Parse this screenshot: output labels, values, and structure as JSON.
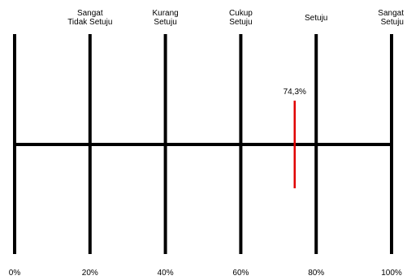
{
  "chart_data": {
    "type": "scale",
    "x": [
      0,
      20,
      40,
      60,
      80,
      100
    ],
    "tick_labels": [
      "0%",
      "20%",
      "40%",
      "60%",
      "80%",
      "100%"
    ],
    "categories": [
      {
        "x": 20,
        "lines": [
          "Sangat",
          "Tidak Setuju"
        ]
      },
      {
        "x": 40,
        "lines": [
          "Kurang",
          "Setuju"
        ]
      },
      {
        "x": 60,
        "lines": [
          "Cukup",
          "Setuju"
        ]
      },
      {
        "x": 80,
        "lines": [
          "Setuju"
        ]
      },
      {
        "x": 100,
        "lines": [
          "Sangat",
          "Setuju"
        ]
      }
    ],
    "marker": {
      "value": 74.3,
      "label": "74,3%",
      "color": "#e00000"
    },
    "xlim": [
      0,
      100
    ]
  }
}
